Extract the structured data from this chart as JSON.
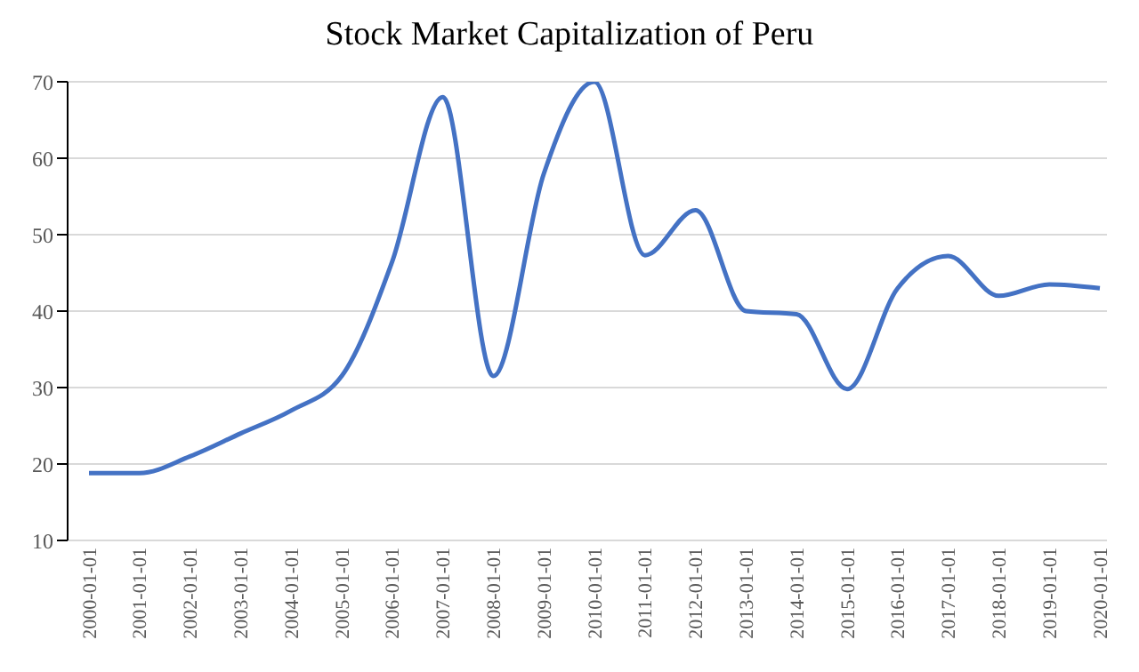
{
  "chart_data": {
    "type": "line",
    "title": "Stock Market Capitalization of Peru",
    "categories": [
      "2000-01-01",
      "2001-01-01",
      "2002-01-01",
      "2003-01-01",
      "2004-01-01",
      "2005-01-01",
      "2006-01-01",
      "2007-01-01",
      "2008-01-01",
      "2009-01-01",
      "2010-01-01",
      "2011-01-01",
      "2012-01-01",
      "2013-01-01",
      "2014-01-01",
      "2015-01-01",
      "2016-01-01",
      "2017-01-01",
      "2018-01-01",
      "2019-01-01",
      "2020-01-01"
    ],
    "series": [
      {
        "color": "#4472c4",
        "values": [
          18.8,
          18.8,
          21,
          24,
          27,
          31.5,
          46.5,
          68,
          31.5,
          58,
          70,
          47.3,
          53.2,
          40,
          39.6,
          29.8,
          43,
          47.2,
          42,
          43.5,
          43
        ]
      }
    ],
    "ylim": [
      10,
      70
    ],
    "yticks": [
      10,
      20,
      30,
      40,
      50,
      60,
      70
    ],
    "grid": "y",
    "marker": "none"
  }
}
